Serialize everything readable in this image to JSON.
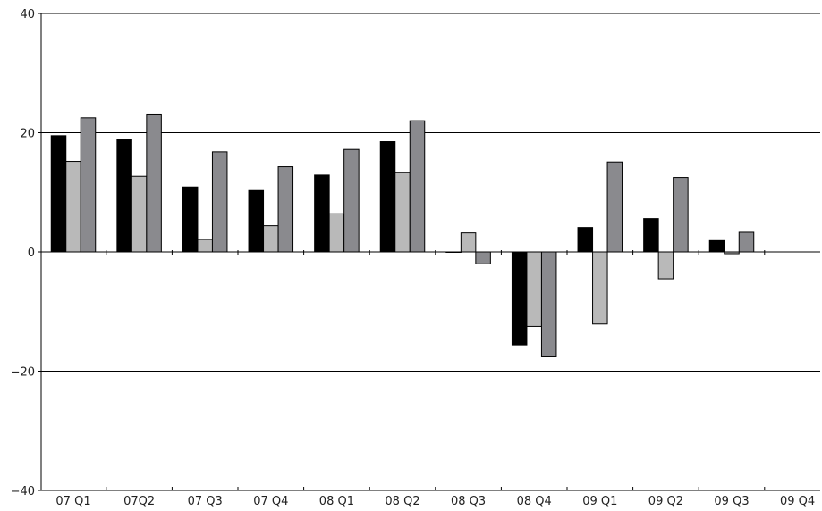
{
  "chart_data": {
    "type": "bar",
    "title": "",
    "xlabel": "",
    "ylabel": "",
    "ylim": [
      -40,
      40
    ],
    "yticks": [
      40,
      20,
      0,
      -20,
      -40
    ],
    "ytick_labels": [
      "40",
      "20",
      "0",
      "−20",
      "−40"
    ],
    "categories": [
      "07 Q1",
      "07Q2",
      "07 Q3",
      "07 Q4",
      "08 Q1",
      "08 Q2",
      "08 Q3",
      "08 Q4",
      "09 Q1",
      "09 Q2",
      "09 Q3",
      "09 Q4"
    ],
    "series": [
      {
        "color": "#000000",
        "values": [
          19.5,
          18.8,
          10.9,
          10.3,
          12.9,
          18.5,
          0,
          -15.6,
          4.1,
          5.6,
          1.9,
          null
        ]
      },
      {
        "color": "#b9b9b9",
        "values": [
          15.2,
          12.7,
          2.1,
          4.4,
          6.4,
          13.3,
          3.2,
          -12.5,
          -12.1,
          -4.5,
          -0.3,
          null
        ]
      },
      {
        "color": "#8a8a8e",
        "values": [
          22.5,
          23.0,
          16.8,
          14.3,
          17.2,
          22.0,
          -2.0,
          -17.6,
          15.1,
          12.5,
          3.3,
          null
        ]
      }
    ],
    "grid": true,
    "legend": "none"
  }
}
